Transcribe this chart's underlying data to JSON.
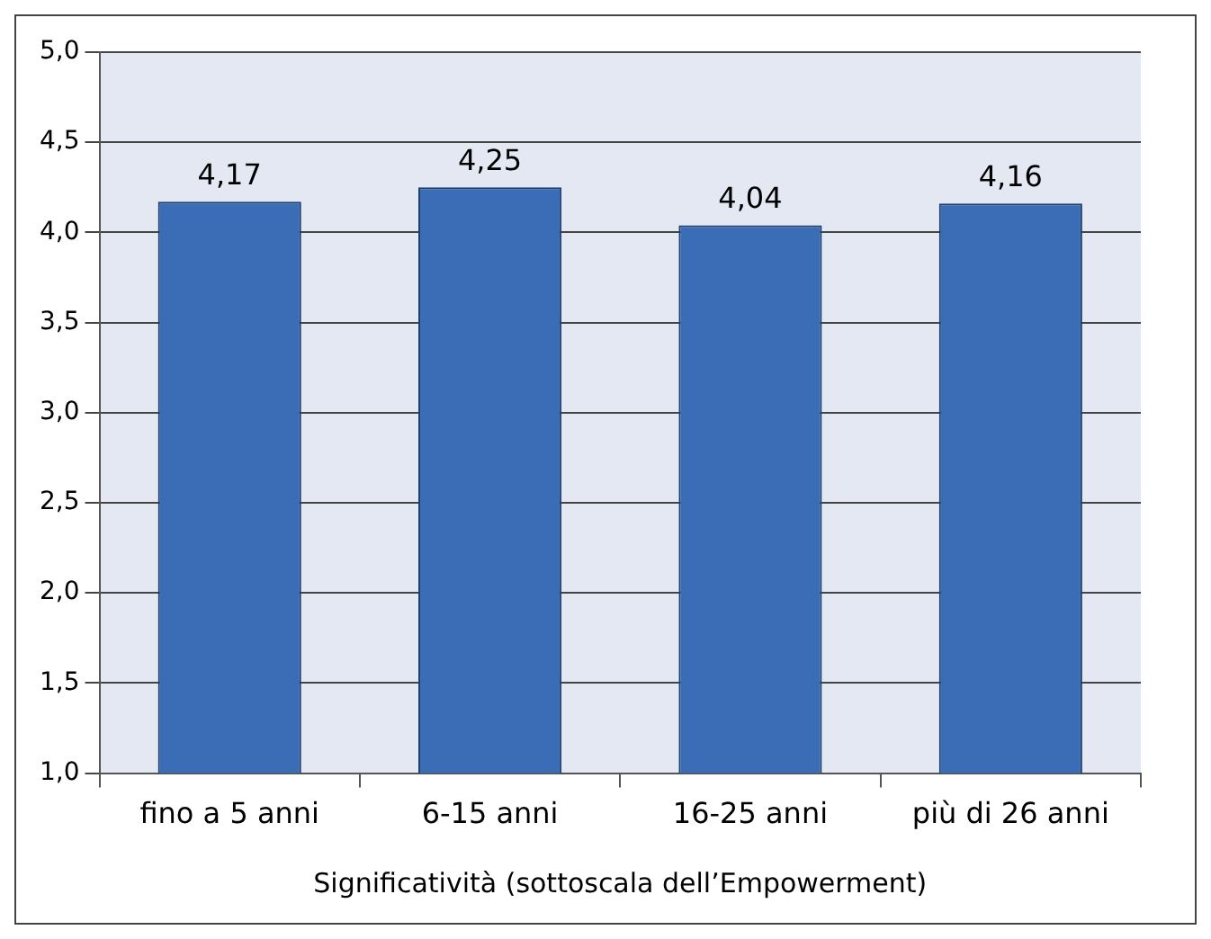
{
  "chart_data": {
    "type": "bar",
    "xlabel": "Significatività (sottoscala dell’Empowerment)",
    "categories": [
      "fino a 5 anni",
      "6-15 anni",
      "16-25 anni",
      "più di 26 anni"
    ],
    "values": [
      4.17,
      4.25,
      4.04,
      4.16
    ],
    "value_labels": [
      "4,17",
      "4,25",
      "4,04",
      "4,16"
    ],
    "color": "#3a6db5",
    "ylim": [
      1,
      5
    ],
    "yticks": [
      {
        "value": 1,
        "label": "1,0"
      },
      {
        "value": 1.5,
        "label": "1,5"
      },
      {
        "value": 2,
        "label": "2,0"
      },
      {
        "value": 2.5,
        "label": "2,5"
      },
      {
        "value": 3,
        "label": "3,0"
      },
      {
        "value": 3.5,
        "label": "3,5"
      },
      {
        "value": 4,
        "label": "4,0"
      },
      {
        "value": 4.5,
        "label": "4,5"
      },
      {
        "value": 5,
        "label": "5,0"
      }
    ],
    "grid": "y",
    "legend": false
  }
}
